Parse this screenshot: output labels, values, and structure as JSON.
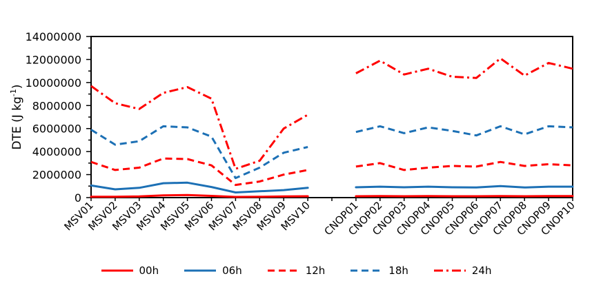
{
  "chart_data": {
    "type": "line",
    "title": "",
    "xlabel": "",
    "ylabel": "DTE (J kg-1)",
    "ylabel_parts": {
      "prefix": "DTE (J kg",
      "sup": "-1",
      "suffix": ")"
    },
    "ylim": [
      0,
      14000000
    ],
    "y_major_step": 2000000,
    "y_minor_step": 1000000,
    "y_tick_labels": [
      "0",
      "2000000",
      "4000000",
      "6000000",
      "8000000",
      "10000000",
      "12000000",
      "14000000"
    ],
    "grid": false,
    "legend_position": "bottom",
    "categories": [
      "MSV01",
      "MSV02",
      "MSV03",
      "MSV04",
      "MSV05",
      "MSV06",
      "MSV07",
      "MSV08",
      "MSV09",
      "MSV10",
      "",
      "CNOP01",
      "CNOP02",
      "CNOP03",
      "CNOP04",
      "CNOP05",
      "CNOP06",
      "CNOP07",
      "CNOP08",
      "CNOP09",
      "CNOP10"
    ],
    "gap_index": 10,
    "series": [
      {
        "name": "00h",
        "color": "#FF0000",
        "style": "solid",
        "values": [
          80000,
          70000,
          100000,
          200000,
          230000,
          150000,
          60000,
          70000,
          100000,
          120000,
          null,
          120000,
          130000,
          120000,
          130000,
          120000,
          120000,
          140000,
          120000,
          130000,
          130000
        ]
      },
      {
        "name": "06h",
        "color": "#1C70B5",
        "style": "solid",
        "values": [
          1050000,
          720000,
          850000,
          1250000,
          1300000,
          920000,
          450000,
          550000,
          650000,
          850000,
          null,
          900000,
          950000,
          900000,
          950000,
          900000,
          880000,
          1000000,
          880000,
          950000,
          950000
        ]
      },
      {
        "name": "12h",
        "color": "#FF0000",
        "style": "dashed",
        "values": [
          3100000,
          2400000,
          2600000,
          3400000,
          3350000,
          2800000,
          1100000,
          1400000,
          2000000,
          2400000,
          null,
          2700000,
          3000000,
          2400000,
          2600000,
          2750000,
          2700000,
          3100000,
          2750000,
          2900000,
          2800000
        ]
      },
      {
        "name": "18h",
        "color": "#1C70B5",
        "style": "dashed",
        "values": [
          5900000,
          4600000,
          4900000,
          6200000,
          6100000,
          5300000,
          1700000,
          2600000,
          3900000,
          4400000,
          null,
          5700000,
          6200000,
          5600000,
          6100000,
          5800000,
          5400000,
          6200000,
          5500000,
          6200000,
          6100000
        ]
      },
      {
        "name": "24h",
        "color": "#FF0000",
        "style": "dashdot",
        "values": [
          9700000,
          8200000,
          7700000,
          9100000,
          9600000,
          8600000,
          2500000,
          3200000,
          6000000,
          7200000,
          null,
          10800000,
          11900000,
          10700000,
          11200000,
          10500000,
          10400000,
          12100000,
          10600000,
          11700000,
          11200000
        ]
      }
    ]
  },
  "style": {
    "axis_color": "#000000",
    "background": "#FFFFFF"
  }
}
